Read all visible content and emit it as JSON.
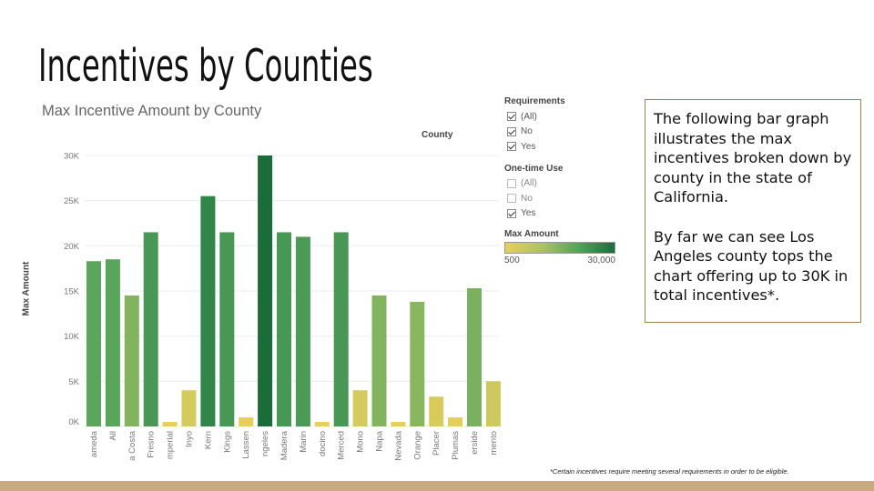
{
  "slide_title": "Incentives by Counties",
  "description": [
    "The following bar graph illustrates the max incentives broken down by county in the state of California.",
    "By far we can see Los Angeles county tops the chart offering up to 30K in total incentives*."
  ],
  "footnote": "*Certain incentives require meeting several requirements in order to be eligible.",
  "filters": {
    "requirements": {
      "title": "Requirements",
      "options": [
        {
          "label": "(All)",
          "checked": true
        },
        {
          "label": "No",
          "checked": true
        },
        {
          "label": "Yes",
          "checked": true
        }
      ]
    },
    "one_time_use": {
      "title": "One-time Use",
      "options": [
        {
          "label": "(All)",
          "checked": false
        },
        {
          "label": "No",
          "checked": false
        },
        {
          "label": "Yes",
          "checked": true
        }
      ]
    },
    "max_amount": {
      "title": "Max Amount",
      "min_label": "500",
      "max_label": "30,000"
    }
  },
  "colors": {
    "low": "#e8cf5c",
    "mid": "#5aa65c",
    "high": "#1a6d3a",
    "footer": "#c9a97f",
    "textbox_border": "#a38356"
  },
  "chart_data": {
    "type": "bar",
    "title": "Max Incentive Amount by County",
    "column_header": "County",
    "ylabel": "Max Amount",
    "ylim": [
      0,
      30000
    ],
    "yticks": [
      0,
      5000,
      10000,
      15000,
      20000,
      25000,
      30000
    ],
    "ytick_labels": [
      "0K",
      "5K",
      "10K",
      "15K",
      "20K",
      "25K",
      "30K"
    ],
    "color_scale": [
      500,
      30000
    ],
    "categories": [
      "ameda",
      "All",
      "a Costa",
      "Fresno",
      "mperial",
      "Inyo",
      "Kern",
      "Kings",
      "Lassen",
      "ngeles",
      "Madera",
      "Marin",
      "docino",
      "Merced",
      "Mono",
      "Napa",
      "Nevada",
      "Orange",
      "Placer",
      "Plumas",
      "erside",
      "mento"
    ],
    "values": [
      18300,
      18500,
      14500,
      21500,
      500,
      4000,
      25500,
      21500,
      1000,
      30000,
      21500,
      21000,
      500,
      21500,
      4000,
      14500,
      500,
      13800,
      3300,
      1000,
      15300,
      5000
    ]
  }
}
